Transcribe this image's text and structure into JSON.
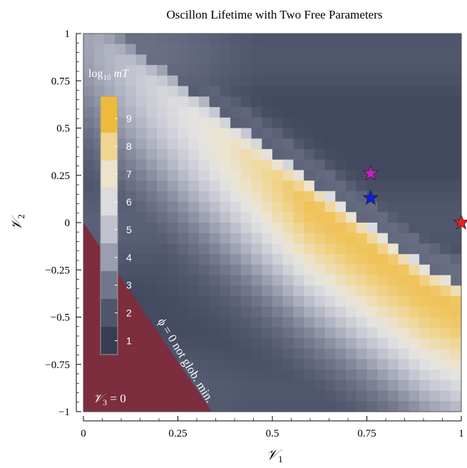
{
  "chart_data": {
    "type": "heatmap",
    "title": "Oscillon Lifetime with Two Free Parameters",
    "xlabel": "𝒱",
    "xlabel_sub": "1",
    "ylabel": "𝒱",
    "ylabel_sub": "2",
    "xlim": [
      0,
      1
    ],
    "ylim": [
      -1,
      1
    ],
    "x_ticks": [
      0,
      0.25,
      0.5,
      0.75,
      1
    ],
    "x_tick_labels": [
      "0",
      "0.25",
      "0.5",
      "0.75",
      "1"
    ],
    "y_ticks": [
      1,
      0.75,
      0.5,
      0.25,
      0,
      -0.25,
      -0.5,
      -0.75,
      -1
    ],
    "y_tick_labels": [
      "1",
      "0.75",
      "0.5",
      "0.25",
      "0",
      "−0.25",
      "−0.5",
      "−0.75",
      "−1"
    ],
    "colorbar": {
      "title_prefix": "log",
      "title_sub": "10",
      "title_suffix": " mT",
      "range": [
        0.5,
        9.8
      ],
      "ticks": [
        1,
        2,
        3,
        4,
        5,
        6,
        7,
        8,
        9
      ],
      "tick_labels": [
        "1",
        "2",
        "3",
        "4",
        "5",
        "6",
        "7",
        "8",
        "9"
      ],
      "placement": "left-inside"
    },
    "lifetime_ridge": {
      "description_points_v1": [
        0.3,
        0.5,
        0.7,
        0.9,
        1.0
      ],
      "description_points_v2": [
        0.55,
        0.25,
        -0.05,
        -0.35,
        -0.45
      ]
    },
    "excluded_region": {
      "label": "𝒱",
      "label_sub": "3",
      "label_suffix": " = 0",
      "boundary": [
        [
          0,
          0
        ],
        [
          0.34,
          -1
        ]
      ],
      "color": "#7c2d3e"
    },
    "boundary_annotation": "ϕ = 0 not glob. min.",
    "markers": [
      {
        "shape": "star",
        "color": "#c21fc0",
        "x": 0.76,
        "y": 0.26
      },
      {
        "shape": "star",
        "color": "#1020d8",
        "x": 0.76,
        "y": 0.13
      },
      {
        "shape": "star",
        "color": "#ff1a1a",
        "x": 1.0,
        "y": 0.0
      }
    ],
    "grid": false
  }
}
